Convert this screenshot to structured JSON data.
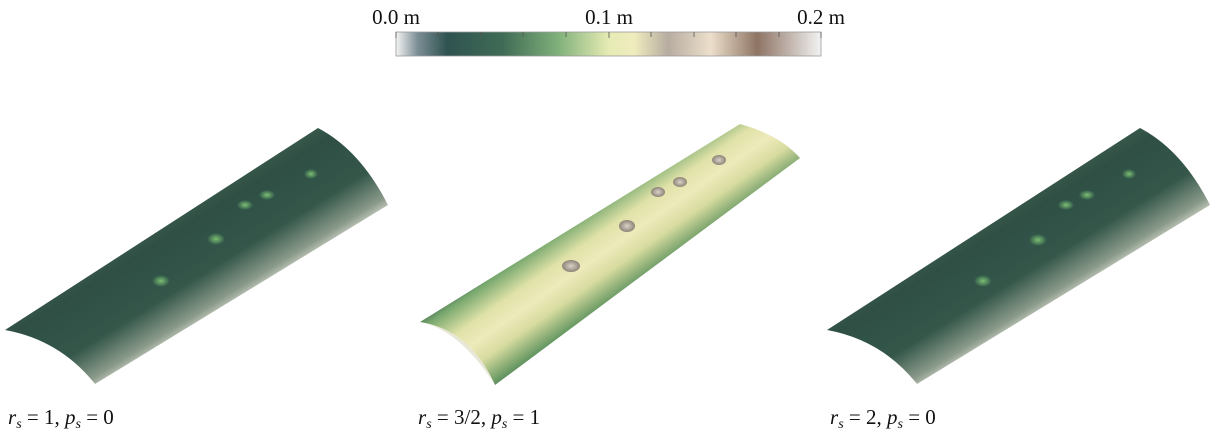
{
  "colorbar": {
    "tick_labels": [
      "0.0 m",
      "0.1 m",
      "0.2 m"
    ]
  },
  "panels": [
    {
      "caption": [
        "r",
        "s",
        " = 1, ",
        "p",
        "s",
        " = 0"
      ]
    },
    {
      "caption": [
        "r",
        "s",
        " = 3/2, ",
        "p",
        "s",
        " = 1"
      ]
    },
    {
      "caption": [
        "r",
        "s",
        " = 2, ",
        "p",
        "s",
        " = 0"
      ]
    }
  ]
}
